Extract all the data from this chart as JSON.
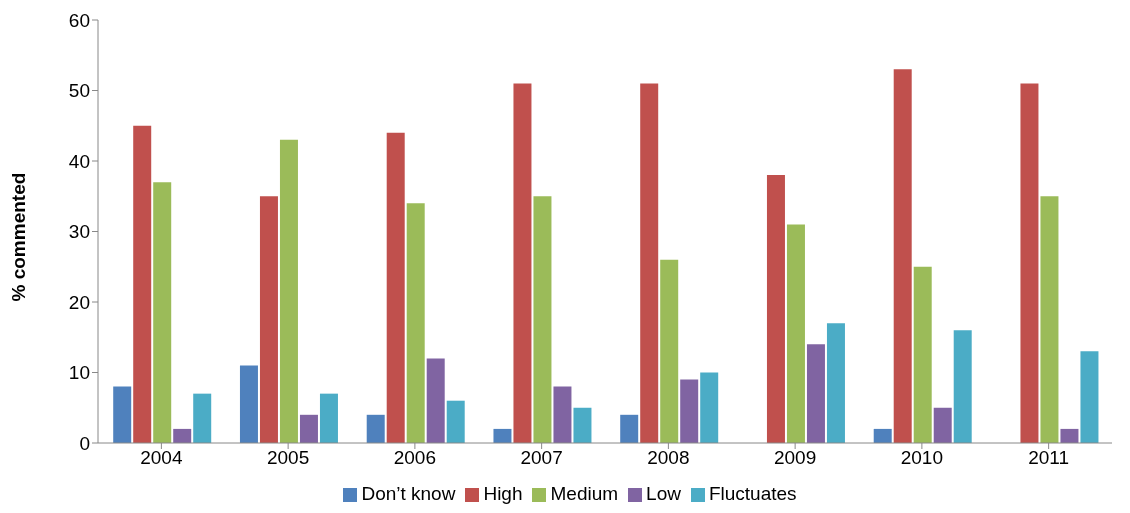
{
  "chart_data": {
    "type": "bar",
    "ylabel": "% commented",
    "categories": [
      "2004",
      "2005",
      "2006",
      "2007",
      "2008",
      "2009",
      "2010",
      "2011"
    ],
    "series": [
      {
        "name": "Don’t know",
        "color": "#4f81bd",
        "values": [
          8,
          11,
          4,
          2,
          4,
          0,
          2,
          0
        ]
      },
      {
        "name": "High",
        "color": "#c0504d",
        "values": [
          45,
          35,
          44,
          51,
          51,
          38,
          53,
          51
        ]
      },
      {
        "name": "Medium",
        "color": "#9bbb59",
        "values": [
          37,
          43,
          34,
          35,
          26,
          31,
          25,
          35
        ]
      },
      {
        "name": "Low",
        "color": "#8064a2",
        "values": [
          2,
          4,
          12,
          8,
          9,
          14,
          5,
          2
        ]
      },
      {
        "name": "Fluctuates",
        "color": "#4bacc6",
        "values": [
          7,
          7,
          6,
          5,
          10,
          17,
          16,
          13
        ]
      }
    ],
    "ylim": [
      0,
      60
    ],
    "yticks": [
      0,
      10,
      20,
      30,
      40,
      50,
      60
    ],
    "grid": false,
    "legend": "bottom"
  }
}
